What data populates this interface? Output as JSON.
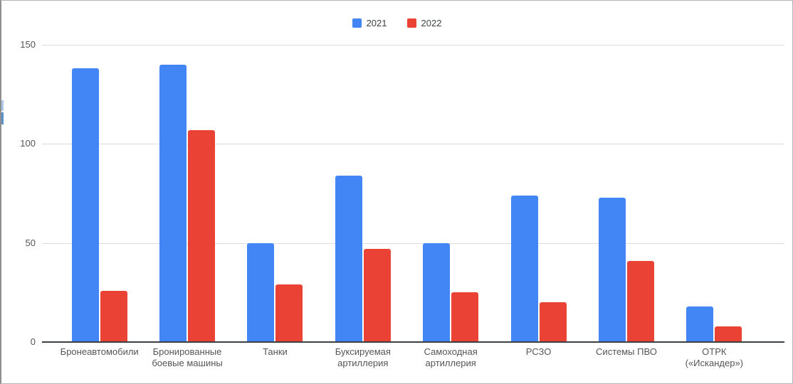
{
  "chart_data": {
    "type": "bar",
    "categories": [
      "Бронеавтомобили",
      "Бронированные боевые машины",
      "Танки",
      "Буксируемая артиллерия",
      "Самоходная артиллерия",
      "РСЗО",
      "Системы ПВО",
      "ОТРК («Искандер»)"
    ],
    "series": [
      {
        "name": "2021",
        "color": "#4285F4",
        "values": [
          138,
          140,
          50,
          84,
          50,
          74,
          73,
          18
        ]
      },
      {
        "name": "2022",
        "color": "#EA4335",
        "values": [
          26,
          107,
          29,
          47,
          25,
          20,
          41,
          8
        ]
      }
    ],
    "title": "",
    "xlabel": "",
    "ylabel": "",
    "ylim": [
      0,
      150
    ],
    "yticks": [
      0,
      50,
      100,
      150
    ],
    "grid": true,
    "legend_position": "top-center",
    "axis_line_color": "#3c4043",
    "gridline_color": "#dcdcdc"
  }
}
